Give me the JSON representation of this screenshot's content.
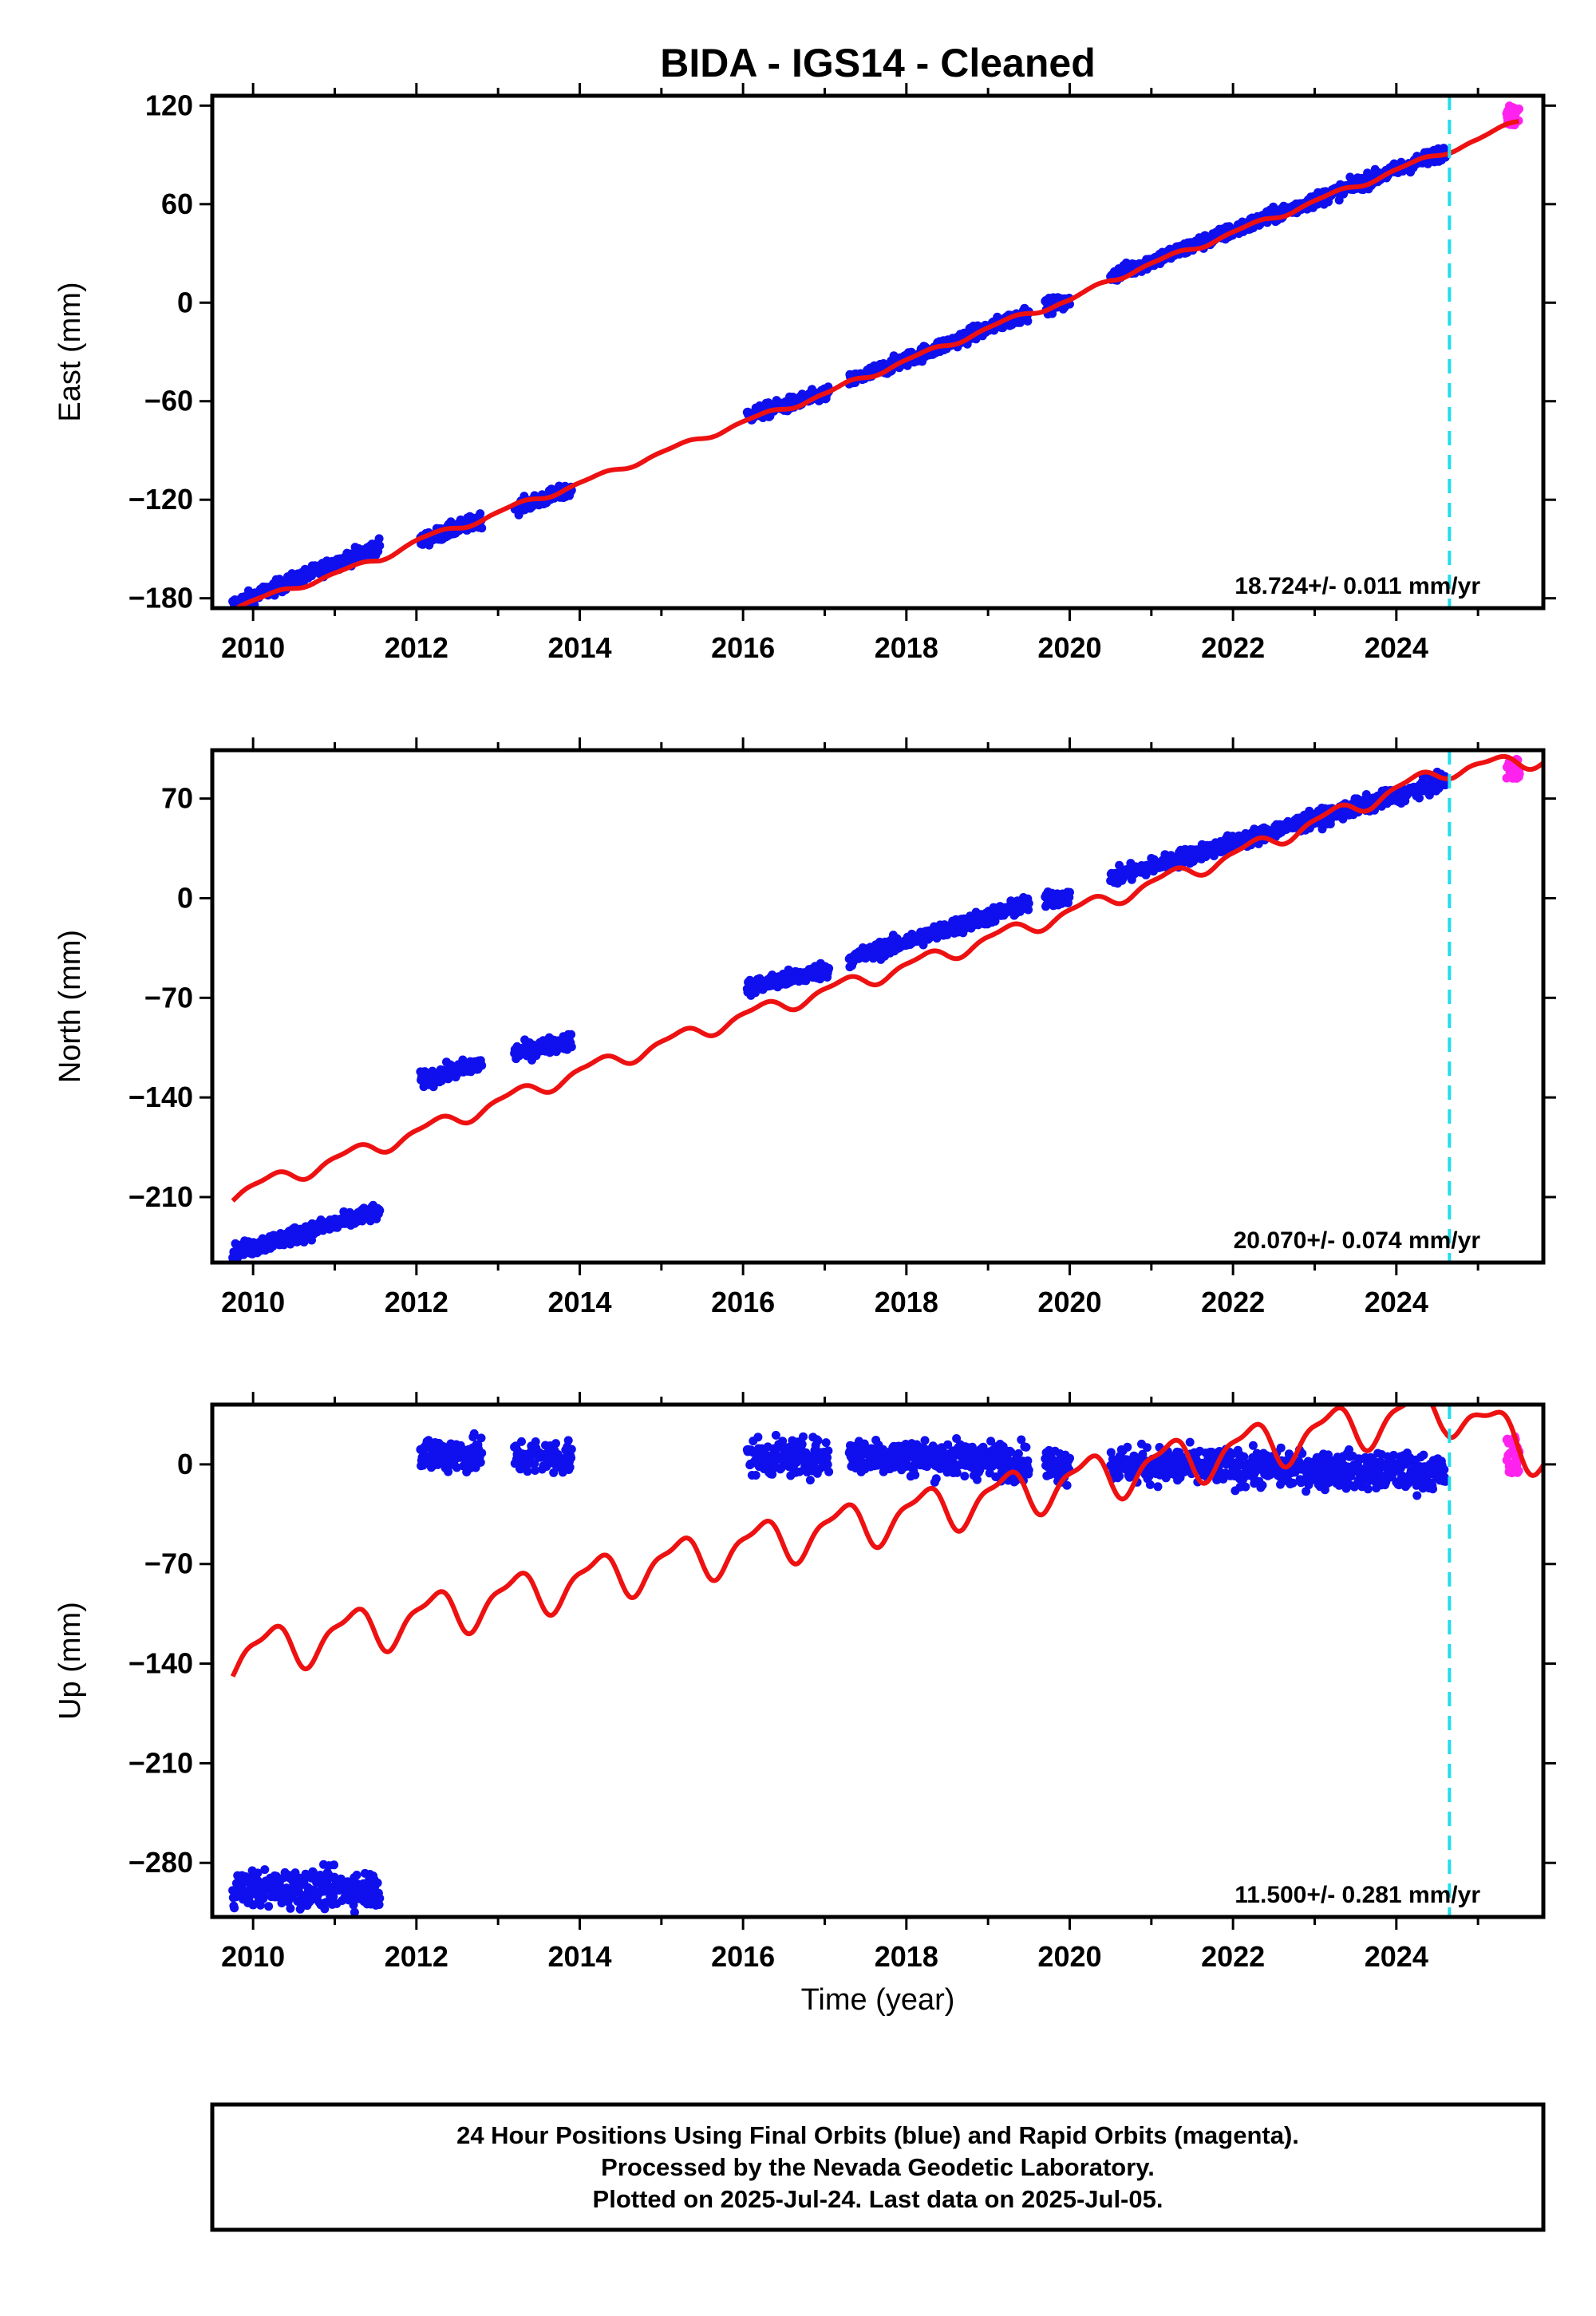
{
  "chart_data": {
    "type": "scatter",
    "title": "BIDA  - IGS14 - Cleaned",
    "xlabel": "Time (year)",
    "xlim": [
      2009.5,
      2025.8
    ],
    "xticks": [
      2010,
      2012,
      2014,
      2016,
      2018,
      2020,
      2022,
      2024
    ],
    "offset_line_year": 2024.65,
    "series_legend": {
      "final_orbits": "blue",
      "rapid_orbits": "magenta",
      "model": "red"
    },
    "data_segments": [
      [
        2009.75,
        2011.55
      ],
      [
        2012.05,
        2012.8
      ],
      [
        2013.2,
        2013.9
      ],
      [
        2016.05,
        2017.05
      ],
      [
        2017.3,
        2019.5
      ],
      [
        2019.7,
        2020.0
      ],
      [
        2020.5,
        2024.6
      ]
    ],
    "rapid_range": [
      2025.35,
      2025.51
    ],
    "panels": [
      {
        "name": "east",
        "ylabel": "East (mm)",
        "ylim": [
          -186,
          126
        ],
        "yticks": [
          120,
          60,
          0,
          -60,
          -120,
          -180
        ],
        "rate_label": "18.724+/- 0.011 mm/yr",
        "obs_anchors": [
          [
            2009.75,
            -184
          ],
          [
            2011.55,
            -148
          ],
          [
            2012.05,
            -145
          ],
          [
            2012.8,
            -132
          ],
          [
            2013.2,
            -125
          ],
          [
            2013.9,
            -114
          ],
          [
            2016.05,
            -69
          ],
          [
            2017.05,
            -55
          ],
          [
            2017.3,
            -48
          ],
          [
            2019.5,
            -6
          ],
          [
            2019.7,
            -2
          ],
          [
            2020.0,
            0
          ],
          [
            2020.5,
            16
          ],
          [
            2024.6,
            92
          ]
        ],
        "model_anchors": [
          [
            2009.75,
            -186
          ],
          [
            2011.55,
            -156
          ],
          [
            2012.05,
            -144
          ],
          [
            2012.8,
            -132
          ],
          [
            2013.2,
            -124
          ],
          [
            2013.9,
            -112
          ],
          [
            2016.05,
            -72
          ],
          [
            2017.05,
            -55
          ],
          [
            2017.3,
            -49
          ],
          [
            2019.5,
            -6
          ],
          [
            2020.0,
            1
          ],
          [
            2020.5,
            14
          ],
          [
            2024.6,
            92
          ],
          [
            2025.0,
            99
          ],
          [
            2025.5,
            111
          ]
        ],
        "model_seasonal_amp": 1.5,
        "noise": 3,
        "rapid_center": 114,
        "rapid_spread": 6
      },
      {
        "name": "north",
        "ylabel": "North (mm)",
        "ylim": [
          -256,
          104
        ],
        "yticks": [
          70,
          0,
          -70,
          -140,
          -210
        ],
        "rate_label": "20.070+/- 0.074 mm/yr",
        "obs_anchors": [
          [
            2009.75,
            -249
          ],
          [
            2011.55,
            -220
          ],
          [
            2012.05,
            -128
          ],
          [
            2012.8,
            -116
          ],
          [
            2013.2,
            -109
          ],
          [
            2013.9,
            -100
          ],
          [
            2016.05,
            -63
          ],
          [
            2017.05,
            -50
          ],
          [
            2017.3,
            -43
          ],
          [
            2019.5,
            -4
          ],
          [
            2019.7,
            -2
          ],
          [
            2020.0,
            2
          ],
          [
            2020.5,
            14
          ],
          [
            2024.6,
            82
          ]
        ],
        "model_anchors": [
          [
            2009.75,
            -208
          ],
          [
            2012.0,
            -165
          ],
          [
            2014.0,
            -122
          ],
          [
            2016.0,
            -83
          ],
          [
            2018.0,
            -48
          ],
          [
            2020.0,
            -10
          ],
          [
            2022.0,
            30
          ],
          [
            2024.6,
            90
          ],
          [
            2025.8,
            98
          ]
        ],
        "model_seasonal_amp": 5,
        "noise": 4,
        "rapid_center": 92,
        "rapid_spread": 8
      },
      {
        "name": "up",
        "ylabel": "Up (mm)",
        "ylim": [
          -318,
          42
        ],
        "yticks": [
          0,
          -70,
          -140,
          -210,
          -280
        ],
        "rate_label": "11.500+/- 0.281 mm/yr",
        "obs_anchors": [
          [
            2009.75,
            -298
          ],
          [
            2011.55,
            -298
          ],
          [
            2012.05,
            7
          ],
          [
            2012.8,
            7
          ],
          [
            2013.2,
            5
          ],
          [
            2013.9,
            5
          ],
          [
            2016.05,
            5
          ],
          [
            2017.05,
            5
          ],
          [
            2017.3,
            7
          ],
          [
            2019.5,
            2
          ],
          [
            2019.7,
            0
          ],
          [
            2020.0,
            0
          ],
          [
            2020.5,
            0
          ],
          [
            2024.6,
            -6
          ]
        ],
        "model_anchors": [
          [
            2009.75,
            -135
          ],
          [
            2012.0,
            -108
          ],
          [
            2014.0,
            -82
          ],
          [
            2016.0,
            -58
          ],
          [
            2018.0,
            -35
          ],
          [
            2020.0,
            -12
          ],
          [
            2022.0,
            10
          ],
          [
            2024.6,
            40
          ],
          [
            2025.8,
            8
          ]
        ],
        "model_seasonal_amp": 15,
        "noise": 9,
        "rapid_center": 6,
        "rapid_spread": 14
      }
    ]
  },
  "footer": {
    "line1": "24 Hour Positions Using Final Orbits (blue) and Rapid Orbits (magenta).",
    "line2": "Processed by the Nevada Geodetic Laboratory.",
    "line3": "Plotted on 2025-Jul-24. Last data on 2025-Jul-05."
  }
}
